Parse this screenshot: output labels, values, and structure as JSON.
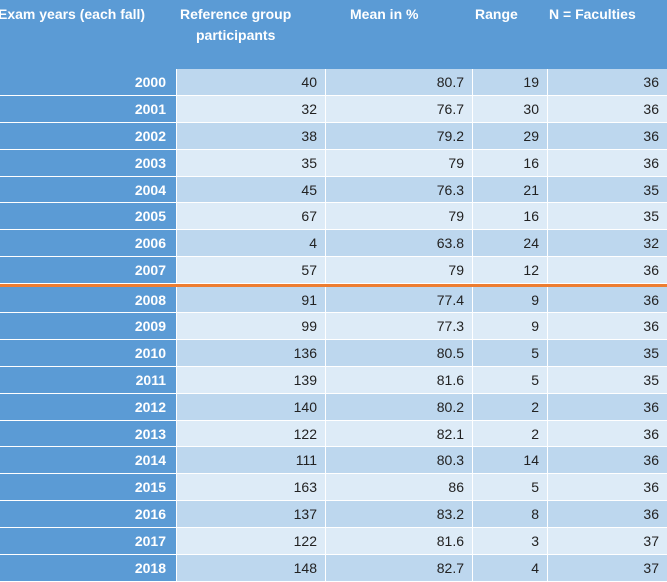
{
  "headers": {
    "year": "Exam years (each fall)",
    "participants_line1": "Reference group",
    "participants_line2": "participants",
    "mean": "Mean in %",
    "range": "Range",
    "faculties": "N = Faculties"
  },
  "colors": {
    "header": "#5b9bd5",
    "row_dark": "#bdd7ee",
    "row_light": "#ddebf7",
    "separator": "#ed7d31"
  },
  "rows": [
    {
      "year": "2000",
      "participants": "40",
      "mean": "80.7",
      "range": "19",
      "faculties": "36"
    },
    {
      "year": "2001",
      "participants": "32",
      "mean": "76.7",
      "range": "30",
      "faculties": "36"
    },
    {
      "year": "2002",
      "participants": "38",
      "mean": "79.2",
      "range": "29",
      "faculties": "36"
    },
    {
      "year": "2003",
      "participants": "35",
      "mean": "79",
      "range": "16",
      "faculties": "36"
    },
    {
      "year": "2004",
      "participants": "45",
      "mean": "76.3",
      "range": "21",
      "faculties": "35"
    },
    {
      "year": "2005",
      "participants": "67",
      "mean": "79",
      "range": "16",
      "faculties": "35"
    },
    {
      "year": "2006",
      "participants": "4",
      "mean": "63.8",
      "range": "24",
      "faculties": "32"
    },
    {
      "year": "2007",
      "participants": "57",
      "mean": "79",
      "range": "12",
      "faculties": "36"
    },
    {
      "year": "2008",
      "participants": "91",
      "mean": "77.4",
      "range": "9",
      "faculties": "36"
    },
    {
      "year": "2009",
      "participants": "99",
      "mean": "77.3",
      "range": "9",
      "faculties": "36"
    },
    {
      "year": "2010",
      "participants": "136",
      "mean": "80.5",
      "range": "5",
      "faculties": "35"
    },
    {
      "year": "2011",
      "participants": "139",
      "mean": "81.6",
      "range": "5",
      "faculties": "35"
    },
    {
      "year": "2012",
      "participants": "140",
      "mean": "80.2",
      "range": "2",
      "faculties": "36"
    },
    {
      "year": "2013",
      "participants": "122",
      "mean": "82.1",
      "range": "2",
      "faculties": "36"
    },
    {
      "year": "2014",
      "participants": "111",
      "mean": "80.3",
      "range": "14",
      "faculties": "36"
    },
    {
      "year": "2015",
      "participants": "163",
      "mean": "86",
      "range": "5",
      "faculties": "36"
    },
    {
      "year": "2016",
      "participants": "137",
      "mean": "83.2",
      "range": "8",
      "faculties": "36"
    },
    {
      "year": "2017",
      "participants": "122",
      "mean": "81.6",
      "range": "3",
      "faculties": "37"
    },
    {
      "year": "2018",
      "participants": "148",
      "mean": "82.7",
      "range": "4",
      "faculties": "37"
    }
  ],
  "separator_before_year": "2008"
}
